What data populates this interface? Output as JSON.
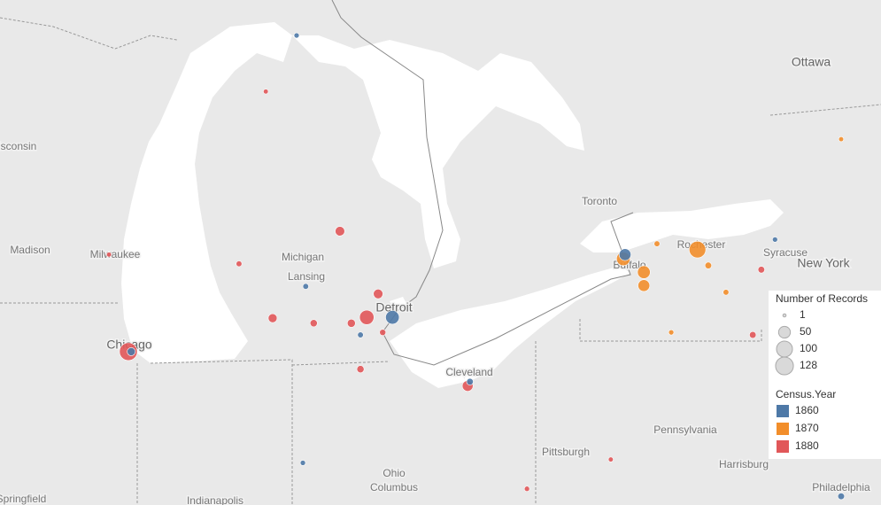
{
  "cities": [
    "Ottawa",
    "Toronto",
    "Madison",
    "Milwaukee",
    "Chicago",
    "Michigan",
    "Lansing",
    "Detroit",
    "Cleveland",
    "Buffalo",
    "Rochester",
    "Syracuse",
    "New York",
    "Pittsburgh",
    "Pennsylvania",
    "Harrisburg",
    "Ohio",
    "Columbus",
    "Indianapolis",
    "Philadelphia",
    "Wisconsin",
    "Springfield"
  ],
  "chart_data": {
    "type": "bubble-map",
    "size_legend": {
      "title": "Number of Records",
      "values": [
        1,
        50,
        100,
        128
      ]
    },
    "color_legend": {
      "title": "Census.Year",
      "values": [
        1860,
        1870,
        1880
      ],
      "colors": [
        "#4e79a7",
        "#f28e2b",
        "#e15759"
      ]
    },
    "points": {
      "lon": [
        -87.63,
        -87.58,
        -83.45,
        -83.0,
        -77.65,
        -78.95,
        -78.92,
        -78.59,
        -78.59,
        -81.68,
        -87.97,
        -83.92,
        -85.1,
        -83.25,
        -84.52,
        -83.56,
        -84.38,
        -84.68,
        -84.57,
        -85.22,
        -76.29,
        -75.13,
        -76.53,
        -78.11,
        -76.68,
        -75.13,
        -80.64,
        -79.17,
        -81.64,
        -85.69,
        -77.46,
        -77.15,
        -78.36,
        -83.72,
        -83.17,
        -83.56,
        -74.97
      ],
      "lat": [
        41.86,
        41.86,
        42.27,
        42.27,
        43.08,
        42.97,
        43.02,
        42.81,
        42.65,
        41.45,
        43.02,
        43.3,
        42.26,
        42.55,
        42.64,
        41.65,
        42.2,
        45.64,
        40.53,
        44.97,
        43.2,
        44.4,
        42.84,
        42.09,
        42.06,
        40.13,
        40.22,
        40.57,
        41.5,
        42.91,
        42.89,
        42.57,
        43.15,
        42.2,
        42.09,
        42.06,
        42.38
      ],
      "year": [
        1880,
        1860,
        1880,
        1860,
        1870,
        1870,
        1860,
        1870,
        1870,
        1880,
        1880,
        1880,
        1880,
        1880,
        1860,
        1880,
        1880,
        1860,
        1860,
        1880,
        1860,
        1870,
        1880,
        1870,
        1880,
        1860,
        1880,
        1880,
        1860,
        1880,
        1870,
        1870,
        1870,
        1880,
        1880,
        1860,
        1870
      ],
      "records": [
        128,
        20,
        80,
        70,
        110,
        70,
        50,
        60,
        50,
        40,
        5,
        30,
        25,
        30,
        8,
        15,
        15,
        6,
        6,
        5,
        6,
        5,
        12,
        6,
        12,
        12,
        6,
        5,
        12,
        8,
        12,
        8,
        8,
        20,
        10,
        8,
        8
      ]
    }
  }
}
